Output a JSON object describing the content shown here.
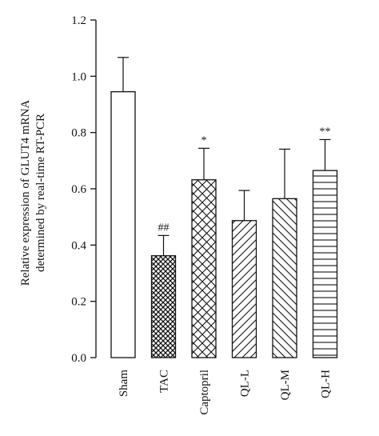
{
  "chart_data": {
    "type": "bar",
    "categories": [
      "Sham",
      "TAC",
      "Captopril",
      "QL-L",
      "QL-M",
      "QL-H"
    ],
    "values": [
      0.945,
      0.362,
      0.632,
      0.487,
      0.565,
      0.665
    ],
    "error": [
      0.122,
      0.072,
      0.112,
      0.107,
      0.176,
      0.11
    ],
    "annotations": [
      "",
      "##",
      "*",
      "",
      "",
      "**"
    ],
    "patterns": [
      "none",
      "crosshatch",
      "diag-crosshatch",
      "diag-up",
      "diag-down",
      "horizontal"
    ],
    "ylabel": [
      "Relative expression of GLUT4 mRNA",
      "determined by real-time RT-PCR"
    ],
    "ylim": [
      0.0,
      1.2
    ],
    "yticks": [
      "0.0",
      "0.2",
      "0.4",
      "0.6",
      "0.8",
      "1.0",
      "1.2"
    ],
    "grid": false
  }
}
